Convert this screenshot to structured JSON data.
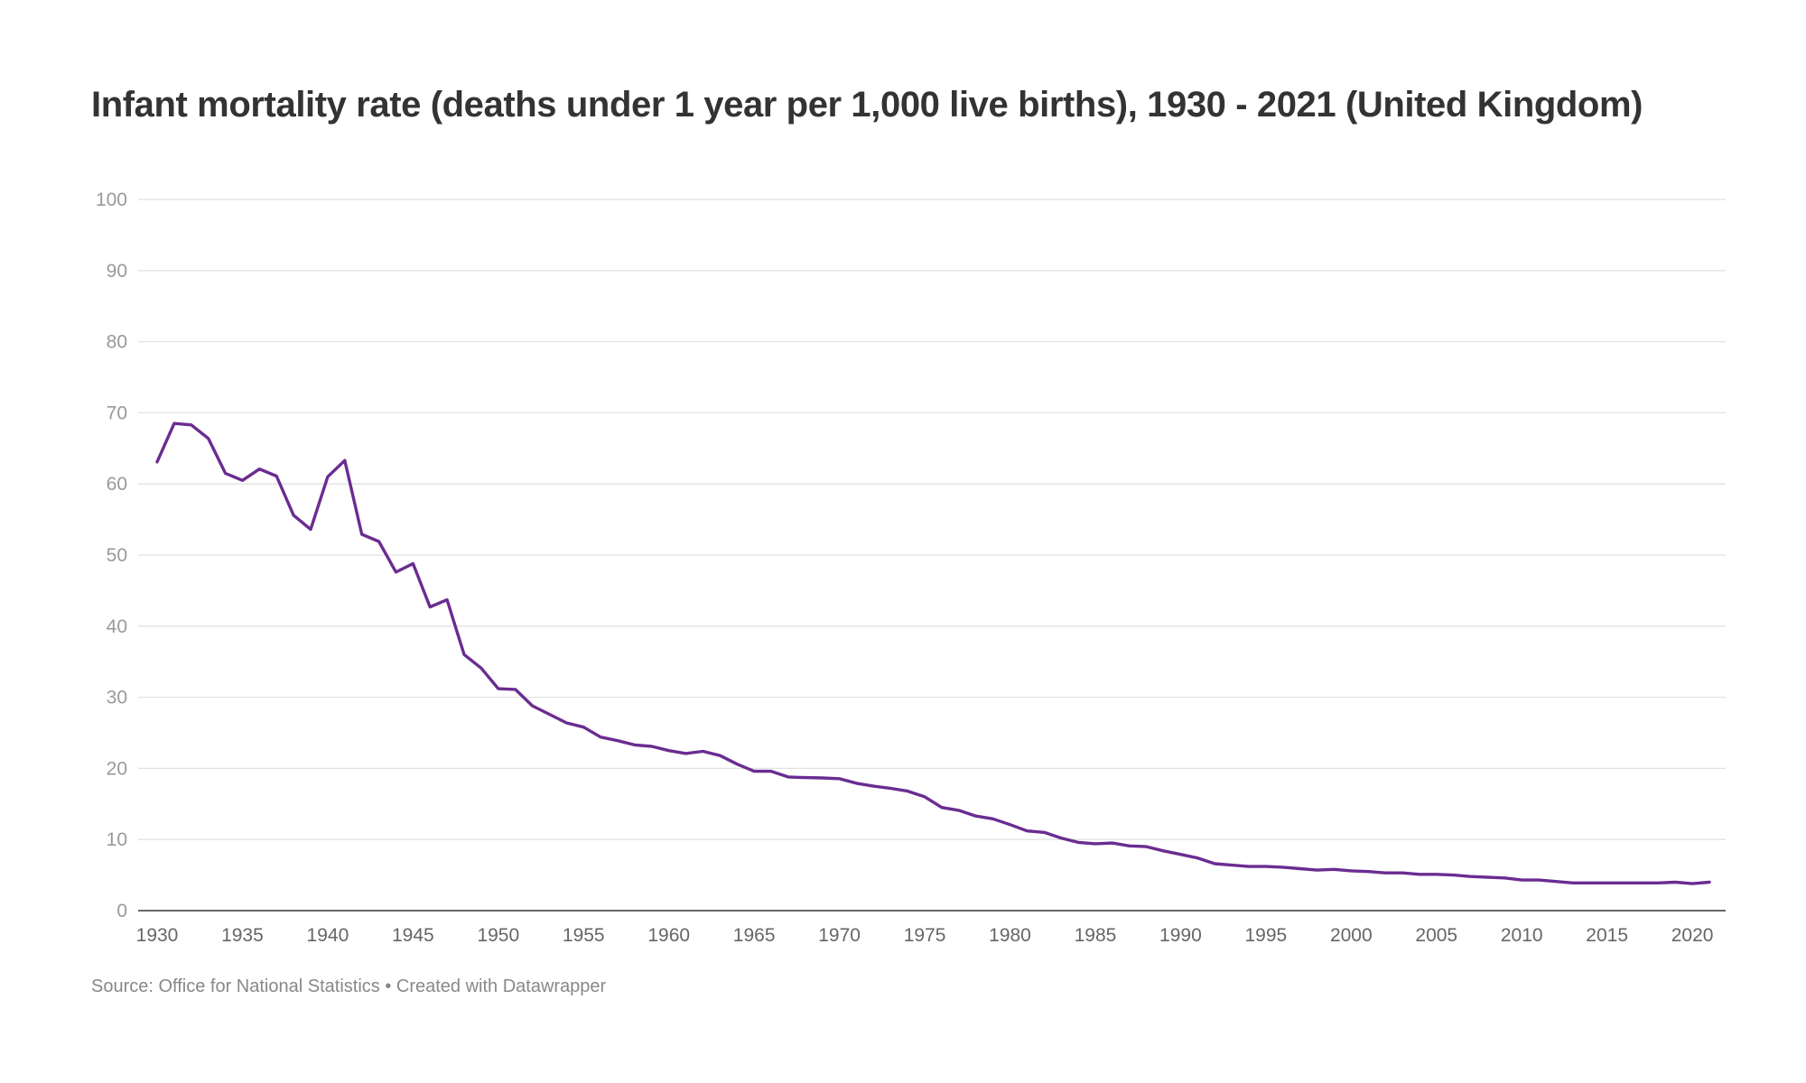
{
  "chart_data": {
    "type": "line",
    "title": "Infant mortality rate (deaths under 1 year per 1,000 live births), 1930 - 2021 (United Kingdom)",
    "xlabel": "",
    "ylabel": "",
    "xlim": [
      1930,
      2021
    ],
    "ylim": [
      0,
      100
    ],
    "yticks": [
      0,
      10,
      20,
      30,
      40,
      50,
      60,
      70,
      80,
      90,
      100
    ],
    "xticks": [
      1930,
      1935,
      1940,
      1945,
      1950,
      1955,
      1960,
      1965,
      1970,
      1975,
      1980,
      1985,
      1990,
      1995,
      2000,
      2005,
      2010,
      2015,
      2020
    ],
    "grid": true,
    "legend": "none",
    "colors": {
      "line": "#6a2c91",
      "grid": "#e2e2e2",
      "axis": "#333333",
      "tick_label": "#999999",
      "x_tick_label": "#666666"
    },
    "series": [
      {
        "x": [
          1930,
          1931,
          1932,
          1933,
          1934,
          1935,
          1936,
          1937,
          1938,
          1939,
          1940,
          1941,
          1942,
          1943,
          1944,
          1945,
          1946,
          1947,
          1948,
          1949,
          1950,
          1951,
          1952,
          1953,
          1954,
          1955,
          1956,
          1957,
          1958,
          1959,
          1960,
          1961,
          1962,
          1963,
          1964,
          1965,
          1966,
          1967,
          1968,
          1969,
          1970,
          1971,
          1972,
          1973,
          1974,
          1975,
          1976,
          1977,
          1978,
          1979,
          1980,
          1981,
          1982,
          1983,
          1984,
          1985,
          1986,
          1987,
          1988,
          1989,
          1990,
          1991,
          1992,
          1993,
          1994,
          1995,
          1996,
          1997,
          1998,
          1999,
          2000,
          2001,
          2002,
          2003,
          2004,
          2005,
          2006,
          2007,
          2008,
          2009,
          2010,
          2011,
          2012,
          2013,
          2014,
          2015,
          2016,
          2017,
          2018,
          2019,
          2020,
          2021
        ],
        "values": [
          63.1,
          68.5,
          68.3,
          66.4,
          61.5,
          60.5,
          62.1,
          61.1,
          55.6,
          53.6,
          61,
          63.3,
          52.9,
          51.9,
          47.6,
          48.8,
          42.7,
          43.7,
          36,
          34.1,
          31.2,
          31.1,
          28.8,
          27.6,
          26.4,
          25.8,
          24.4,
          23.9,
          23.3,
          23.1,
          22.5,
          22.1,
          22.4,
          21.8,
          20.6,
          19.6,
          19.6,
          18.8,
          18.7,
          18.65,
          18.55,
          17.9,
          17.5,
          17.2,
          16.8,
          16,
          14.5,
          14.1,
          13.3,
          12.9,
          12.1,
          11.2,
          11,
          10.2,
          9.6,
          9.4,
          9.5,
          9.1,
          9,
          8.4,
          7.9,
          7.4,
          6.6,
          6.4,
          6.2,
          6.2,
          6.1,
          5.9,
          5.7,
          5.8,
          5.6,
          5.5,
          5.3,
          5.3,
          5.1,
          5.1,
          5,
          4.8,
          4.7,
          4.6,
          4.3,
          4.3,
          4.1,
          3.9,
          3.9,
          3.9,
          3.9,
          3.9,
          3.9,
          4,
          3.8,
          4
        ]
      }
    ]
  },
  "source_text": "Source: Office for National Statistics • Created with Datawrapper"
}
